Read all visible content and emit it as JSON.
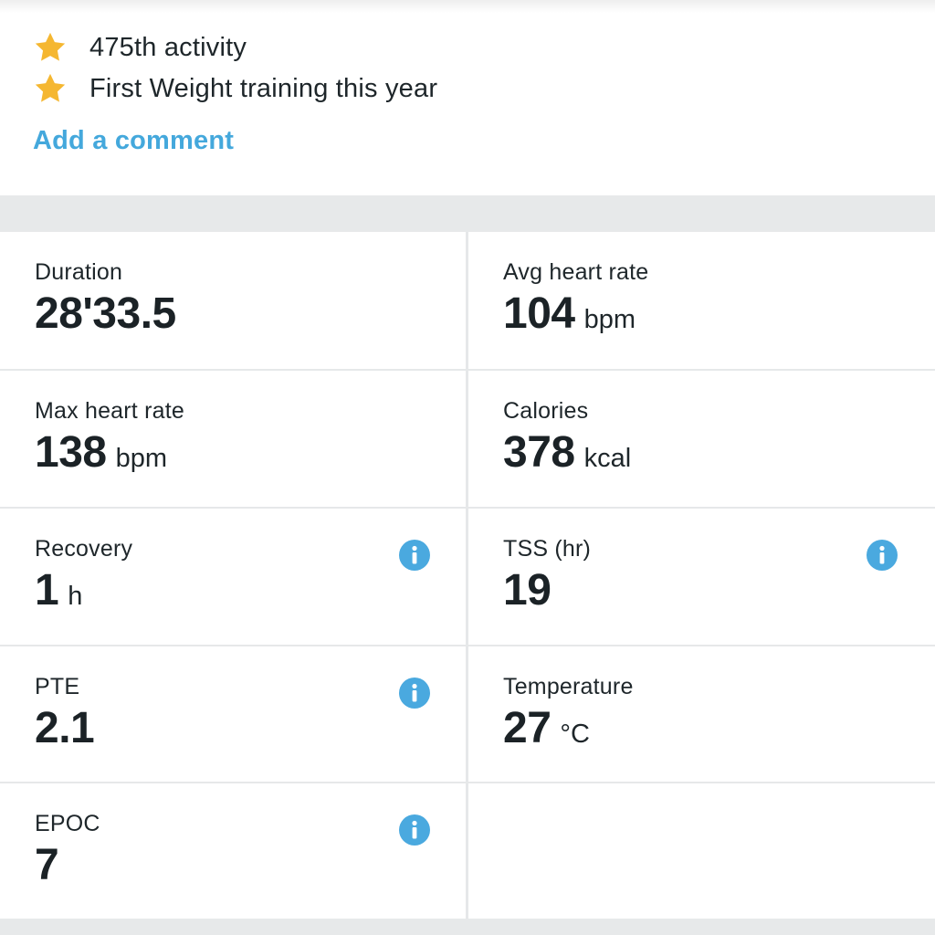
{
  "achievements": [
    {
      "text": "475th activity",
      "icon": "star-icon"
    },
    {
      "text": "First Weight training this year",
      "icon": "star-icon"
    }
  ],
  "add_comment_label": "Add a comment",
  "colors": {
    "accent": "#44a8dc",
    "star": "#f5b731",
    "info": "#4aa9df",
    "separator": "#e7e9ea"
  },
  "stats": [
    {
      "label": "Duration",
      "value": "28'33.5",
      "unit": "",
      "info": false
    },
    {
      "label": "Avg heart rate",
      "value": "104",
      "unit": "bpm",
      "info": false
    },
    {
      "label": "Max heart rate",
      "value": "138",
      "unit": "bpm",
      "info": false
    },
    {
      "label": "Calories",
      "value": "378",
      "unit": "kcal",
      "info": false
    },
    {
      "label": "Recovery",
      "value": "1",
      "unit": "h",
      "info": true
    },
    {
      "label": "TSS (hr)",
      "value": "19",
      "unit": "",
      "info": true
    },
    {
      "label": "PTE",
      "value": "2.1",
      "unit": "",
      "info": true
    },
    {
      "label": "Temperature",
      "value": "27",
      "unit": "°C",
      "info": false
    },
    {
      "label": "EPOC",
      "value": "7",
      "unit": "",
      "info": true
    }
  ]
}
